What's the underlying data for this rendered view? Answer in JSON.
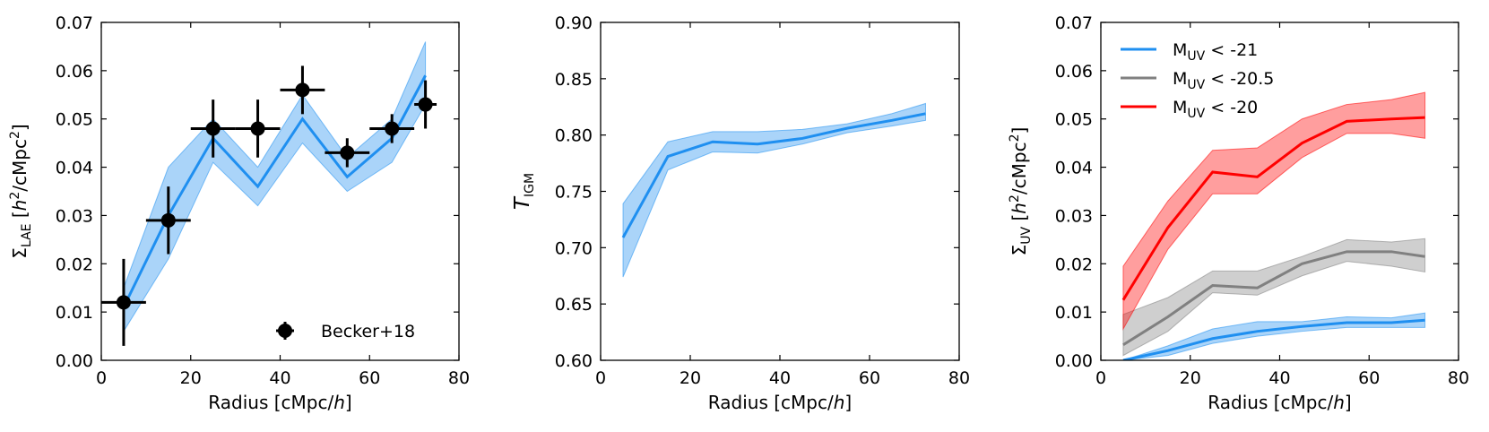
{
  "chart_data": [
    {
      "type": "line",
      "xlabel": "Radius [cMpc/h]",
      "xlabel_main": "Radius [cMpc/",
      "xlabel_italic": "h",
      "xlabel_tail": "]",
      "ylabel": "Σ_LAE [h²/cMpc²]",
      "ylabel_sym": "Σ",
      "ylabel_sub": "LAE",
      "ylabel_pre": "[",
      "ylabel_h": "h",
      "ylabel_sup": "2",
      "ylabel_mid": "/cMpc",
      "ylabel_sup2": "2",
      "ylabel_post": "]",
      "xlim": [
        0,
        80
      ],
      "ylim": [
        0,
        0.07
      ],
      "xticks": [
        "0",
        "20",
        "40",
        "60",
        "80"
      ],
      "yticks": [
        "0.00",
        "0.01",
        "0.02",
        "0.03",
        "0.04",
        "0.05",
        "0.06",
        "0.07"
      ],
      "series": [
        {
          "color": "#1f8ff0",
          "x": [
            5,
            15,
            25,
            35,
            45,
            55,
            65,
            72.5
          ],
          "y": [
            0.011,
            0.03,
            0.046,
            0.036,
            0.05,
            0.038,
            0.046,
            0.059
          ],
          "y_low": [
            0.006,
            0.021,
            0.041,
            0.032,
            0.045,
            0.035,
            0.041,
            0.053
          ],
          "y_high": [
            0.015,
            0.04,
            0.05,
            0.04,
            0.055,
            0.042,
            0.05,
            0.066
          ]
        }
      ],
      "points": {
        "name": "Becker+18",
        "color": "#000000",
        "x": [
          5,
          15,
          25,
          35,
          45,
          55,
          65,
          72.5
        ],
        "y": [
          0.012,
          0.029,
          0.048,
          0.048,
          0.056,
          0.043,
          0.048,
          0.053
        ],
        "xerr": [
          5,
          5,
          5,
          5,
          5,
          5,
          5,
          2.5
        ],
        "yerr": [
          0.009,
          0.007,
          0.006,
          0.006,
          0.005,
          0.003,
          0.003,
          0.005
        ]
      },
      "legend": "bottom-right"
    },
    {
      "type": "line",
      "xlabel": "Radius [cMpc/h]",
      "xlabel_main": "Radius [cMpc/",
      "xlabel_italic": "h",
      "xlabel_tail": "]",
      "ylabel": "T_IGM",
      "ylabel_sym": "T",
      "ylabel_sub": "IGM",
      "xlim": [
        0,
        80
      ],
      "ylim": [
        0.6,
        0.9
      ],
      "xticks": [
        "0",
        "20",
        "40",
        "60",
        "80"
      ],
      "yticks": [
        "0.60",
        "0.65",
        "0.70",
        "0.75",
        "0.80",
        "0.85",
        "0.90"
      ],
      "series": [
        {
          "color": "#1f8ff0",
          "x": [
            5,
            15,
            25,
            35,
            45,
            55,
            65,
            72.5
          ],
          "y": [
            0.709,
            0.781,
            0.794,
            0.792,
            0.797,
            0.806,
            0.813,
            0.819
          ],
          "y_low": [
            0.674,
            0.769,
            0.785,
            0.784,
            0.792,
            0.802,
            0.808,
            0.813
          ],
          "y_high": [
            0.739,
            0.794,
            0.803,
            0.803,
            0.805,
            0.81,
            0.819,
            0.828
          ]
        }
      ]
    },
    {
      "type": "line",
      "xlabel": "Radius [cMpc/h]",
      "xlabel_main": "Radius [cMpc/",
      "xlabel_italic": "h",
      "xlabel_tail": "]",
      "ylabel": "Σ_UV [h²/cMpc²]",
      "ylabel_sym": "Σ",
      "ylabel_sub": "UV",
      "ylabel_pre": "[",
      "ylabel_h": "h",
      "ylabel_sup": "2",
      "ylabel_mid": "/cMpc",
      "ylabel_sup2": "2",
      "ylabel_post": "]",
      "xlim": [
        0,
        80
      ],
      "ylim": [
        0,
        0.07
      ],
      "xticks": [
        "0",
        "20",
        "40",
        "60",
        "80"
      ],
      "yticks": [
        "0.00",
        "0.01",
        "0.02",
        "0.03",
        "0.04",
        "0.05",
        "0.06",
        "0.07"
      ],
      "series": [
        {
          "name": "M_UV < -21",
          "name_main": "M",
          "name_sub": "UV",
          "name_tail": " < -21",
          "color": "#1f8ff0",
          "x": [
            5,
            15,
            25,
            35,
            45,
            55,
            65,
            72.5
          ],
          "y": [
            0.0,
            0.002,
            0.0045,
            0.006,
            0.007,
            0.0078,
            0.0078,
            0.0083
          ],
          "y_low": [
            0.0,
            0.001,
            0.0035,
            0.005,
            0.006,
            0.0068,
            0.0068,
            0.0068
          ],
          "y_high": [
            0.0,
            0.003,
            0.0065,
            0.008,
            0.008,
            0.009,
            0.0088,
            0.0098
          ]
        },
        {
          "name": "M_UV < -20.5",
          "name_main": "M",
          "name_sub": "UV",
          "name_tail": " < -20.5",
          "color": "#808080",
          "x": [
            5,
            15,
            25,
            35,
            45,
            55,
            65,
            72.5
          ],
          "y": [
            0.0032,
            0.009,
            0.0155,
            0.015,
            0.02,
            0.0225,
            0.0225,
            0.0215
          ],
          "y_low": [
            0.001,
            0.006,
            0.014,
            0.0135,
            0.0175,
            0.0205,
            0.0195,
            0.0183
          ],
          "y_high": [
            0.0095,
            0.013,
            0.0185,
            0.0185,
            0.0215,
            0.025,
            0.0245,
            0.0252
          ]
        },
        {
          "name": "M_UV < -20",
          "name_main": "M",
          "name_sub": "UV",
          "name_tail": " < -20",
          "color": "#ff0000",
          "x": [
            5,
            15,
            25,
            35,
            45,
            55,
            65,
            72.5
          ],
          "y": [
            0.0125,
            0.0275,
            0.039,
            0.038,
            0.045,
            0.0495,
            0.05,
            0.0503
          ],
          "y_low": [
            0.0065,
            0.023,
            0.0345,
            0.0345,
            0.042,
            0.047,
            0.047,
            0.046
          ],
          "y_high": [
            0.0195,
            0.033,
            0.0435,
            0.044,
            0.05,
            0.053,
            0.054,
            0.0555
          ]
        }
      ],
      "legend": "top-left"
    }
  ]
}
